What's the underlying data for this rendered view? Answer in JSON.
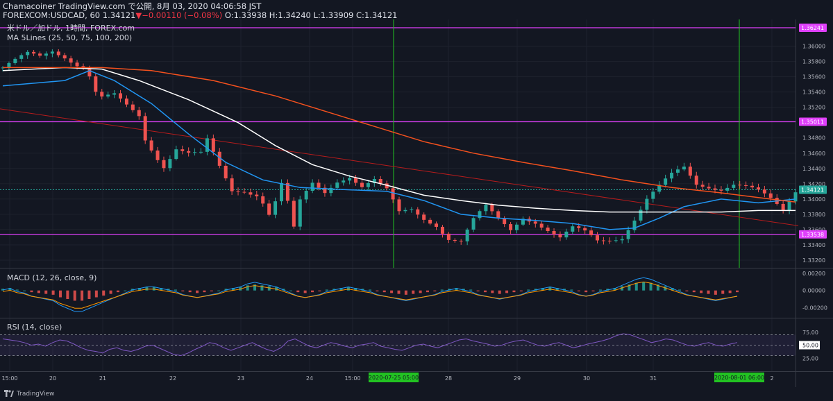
{
  "header": {
    "line1": "Chamacoiner TradingView.com で公開, 8月 03, 2020 04:06:58 JST",
    "symbol": "FOREXCOM:USDCAD, 60",
    "last": "1.34121",
    "change_arrow": "▼",
    "change": "−0.00110 (−0.08%)",
    "ohlc": "O:1.33938 H:1.34240 L:1.33909 C:1.34121"
  },
  "overlay": {
    "title": "米ドル／加ドル, 1時間, FOREX.com",
    "ma_label": "MA 5Lines (25, 50, 75, 100, 200)",
    "macd_label": "MACD (12, 26, close, 9)",
    "rsi_label": "RSI (14, close)"
  },
  "footer": {
    "brand": "TradingView"
  },
  "colors": {
    "bg": "#131722",
    "up": "#26a69a",
    "down": "#ef5350",
    "ma_blue": "#2196f3",
    "ma_white": "#ffffff",
    "ma_red": "#f4511e",
    "trend": "#b71c1c",
    "level": "#e040fb",
    "vline": "#22c322",
    "rsi": "#7e57c2"
  },
  "chart_data": [
    {
      "type": "candlestick",
      "title": "米ドル／加ドル, 1時間, FOREX.com",
      "ylim": [
        1.331,
        1.3635
      ],
      "y_ticks": [
        "1.36000",
        "1.35800",
        "1.35600",
        "1.35400",
        "1.35200",
        "1.34800",
        "1.34600",
        "1.34400",
        "1.34200",
        "1.34000",
        "1.33800",
        "1.33600",
        "1.33400",
        "1.33200"
      ],
      "x_ticks": [
        "15:00",
        "20",
        "21",
        "22",
        "23",
        "24",
        "15:00",
        "28",
        "29",
        "30",
        "31",
        "2"
      ],
      "price_levels": [
        {
          "value": 1.36241,
          "label": "1.36241"
        },
        {
          "value": 1.35011,
          "label": "1.35011"
        },
        {
          "value": 1.33538,
          "label": "1.33538"
        }
      ],
      "last_price": {
        "value": 1.34121,
        "label": "1.34121"
      },
      "vertical_markers": [
        {
          "label": "2020-07-25  05:00"
        },
        {
          "label": "2020-08-01  06:00"
        }
      ],
      "trendline": {
        "start": 1.3518,
        "end": 1.3365
      },
      "close_path": [
        [
          0,
          1.3572
        ],
        [
          2,
          1.358
        ],
        [
          4,
          1.3588
        ],
        [
          6,
          1.3585
        ],
        [
          8,
          1.3594
        ],
        [
          10,
          1.3588
        ],
        [
          12,
          1.3578
        ],
        [
          13,
          1.3574
        ],
        [
          14,
          1.3562
        ],
        [
          15,
          1.354
        ],
        [
          16,
          1.3532
        ],
        [
          18,
          1.3534
        ],
        [
          20,
          1.352
        ],
        [
          22,
          1.3508
        ],
        [
          23,
          1.3478
        ],
        [
          25,
          1.3455
        ],
        [
          26,
          1.3445
        ],
        [
          28,
          1.3468
        ],
        [
          30,
          1.346
        ],
        [
          32,
          1.3458
        ],
        [
          33,
          1.3475
        ],
        [
          35,
          1.344
        ],
        [
          37,
          1.341
        ],
        [
          39,
          1.3412
        ],
        [
          41,
          1.3408
        ],
        [
          42,
          1.3398
        ],
        [
          43,
          1.3382
        ],
        [
          44,
          1.3398
        ],
        [
          45,
          1.342
        ],
        [
          46,
          1.3395
        ],
        [
          47,
          1.336
        ],
        [
          48,
          1.3395
        ],
        [
          50,
          1.3418
        ],
        [
          52,
          1.3408
        ],
        [
          54,
          1.3425
        ],
        [
          56,
          1.3432
        ],
        [
          58,
          1.3418
        ],
        [
          60,
          1.3425
        ],
        [
          62,
          1.341
        ],
        [
          63,
          1.3395
        ],
        [
          64,
          1.338
        ],
        [
          66,
          1.3385
        ],
        [
          68,
          1.3375
        ],
        [
          70,
          1.3368
        ],
        [
          72,
          1.335
        ],
        [
          74,
          1.3345
        ],
        [
          76,
          1.3372
        ],
        [
          78,
          1.3388
        ],
        [
          80,
          1.3372
        ],
        [
          82,
          1.336
        ],
        [
          84,
          1.3378
        ],
        [
          86,
          1.3372
        ],
        [
          88,
          1.336
        ],
        [
          90,
          1.3348
        ],
        [
          92,
          1.336
        ],
        [
          94,
          1.3355
        ],
        [
          96,
          1.3345
        ],
        [
          98,
          1.3348
        ],
        [
          100,
          1.3352
        ],
        [
          102,
          1.3375
        ],
        [
          104,
          1.34
        ],
        [
          106,
          1.3415
        ],
        [
          108,
          1.343
        ],
        [
          110,
          1.344
        ],
        [
          112,
          1.342
        ],
        [
          114,
          1.3418
        ],
        [
          116,
          1.3415
        ],
        [
          118,
          1.342
        ],
        [
          120,
          1.3415
        ],
        [
          122,
          1.3408
        ],
        [
          124,
          1.3398
        ],
        [
          126,
          1.3385
        ],
        [
          128,
          1.3412
        ]
      ],
      "series": [
        {
          "name": "MA 25",
          "points": [
            [
              0,
              1.3548
            ],
            [
              10,
              1.3555
            ],
            [
              14,
              1.3568
            ],
            [
              18,
              1.3555
            ],
            [
              24,
              1.3525
            ],
            [
              30,
              1.3485
            ],
            [
              36,
              1.3448
            ],
            [
              42,
              1.3425
            ],
            [
              48,
              1.3415
            ],
            [
              56,
              1.3412
            ],
            [
              62,
              1.341
            ],
            [
              68,
              1.3398
            ],
            [
              74,
              1.338
            ],
            [
              80,
              1.3375
            ],
            [
              86,
              1.3372
            ],
            [
              92,
              1.3368
            ],
            [
              98,
              1.336
            ],
            [
              102,
              1.3362
            ],
            [
              106,
              1.3375
            ],
            [
              110,
              1.339
            ],
            [
              116,
              1.34
            ],
            [
              122,
              1.3395
            ],
            [
              128,
              1.34
            ]
          ]
        },
        {
          "name": "MA 100",
          "points": [
            [
              0,
              1.3568
            ],
            [
              10,
              1.3572
            ],
            [
              16,
              1.357
            ],
            [
              22,
              1.3555
            ],
            [
              30,
              1.353
            ],
            [
              38,
              1.35
            ],
            [
              44,
              1.347
            ],
            [
              50,
              1.3445
            ],
            [
              56,
              1.343
            ],
            [
              62,
              1.3418
            ],
            [
              68,
              1.3405
            ],
            [
              74,
              1.3398
            ],
            [
              80,
              1.3392
            ],
            [
              86,
              1.3388
            ],
            [
              92,
              1.3385
            ],
            [
              98,
              1.3383
            ],
            [
              104,
              1.3383
            ],
            [
              110,
              1.3383
            ],
            [
              116,
              1.3383
            ],
            [
              122,
              1.3385
            ],
            [
              128,
              1.3385
            ]
          ]
        },
        {
          "name": "MA 200",
          "points": [
            [
              0,
              1.3572
            ],
            [
              16,
              1.3572
            ],
            [
              24,
              1.3568
            ],
            [
              34,
              1.3555
            ],
            [
              44,
              1.3535
            ],
            [
              52,
              1.3515
            ],
            [
              60,
              1.3495
            ],
            [
              68,
              1.3475
            ],
            [
              76,
              1.346
            ],
            [
              84,
              1.3448
            ],
            [
              92,
              1.3437
            ],
            [
              100,
              1.3425
            ],
            [
              108,
              1.3415
            ],
            [
              116,
              1.3408
            ],
            [
              122,
              1.3402
            ],
            [
              128,
              1.3396
            ]
          ]
        }
      ]
    },
    {
      "type": "histogram",
      "title": "MACD (12, 26, close, 9)",
      "ylim": [
        -0.00032,
        0.00025
      ],
      "y_ticks": [
        "0.00200",
        "0.00000",
        "-0.00200"
      ],
      "values": [
        2e-05,
        3e-05,
        1e-05,
        0.0,
        -2e-05,
        -3e-05,
        -4e-05,
        -5e-05,
        -8e-05,
        -0.0001,
        -0.00012,
        -0.00012,
        -0.0001,
        -8e-05,
        -6e-05,
        -4e-05,
        -2e-05,
        0.0,
        2e-05,
        3e-05,
        4e-05,
        4e-05,
        3e-05,
        2e-05,
        1e-05,
        -1e-05,
        -2e-05,
        -3e-05,
        -2e-05,
        -1e-05,
        0.0,
        2e-05,
        3e-05,
        4e-05,
        6e-05,
        7e-05,
        6e-05,
        5e-05,
        4e-05,
        2e-05,
        0.0,
        -2e-05,
        -3e-05,
        -2e-05,
        -1e-05,
        1e-05,
        2e-05,
        3e-05,
        4e-05,
        3e-05,
        2e-05,
        1e-05,
        -1e-05,
        -2e-05,
        -3e-05,
        -4e-05,
        -5e-05,
        -4e-05,
        -3e-05,
        -2e-05,
        -1e-05,
        1e-05,
        2e-05,
        3e-05,
        2e-05,
        1e-05,
        -1e-05,
        -2e-05,
        -3e-05,
        -4e-05,
        -3e-05,
        -2e-05,
        -1e-05,
        1e-05,
        2e-05,
        3e-05,
        4e-05,
        3e-05,
        2e-05,
        1e-05,
        -1e-05,
        -2e-05,
        -1e-05,
        1e-05,
        2e-05,
        3e-05,
        5e-05,
        7e-05,
        9e-05,
        0.0001,
        9e-05,
        7e-05,
        5e-05,
        3e-05,
        1e-05,
        -1e-05,
        -2e-05,
        -3e-05,
        -4e-05,
        -5e-05,
        -4e-05,
        -3e-05,
        -2e-05
      ]
    },
    {
      "type": "line",
      "title": "RSI (14, close)",
      "ylim": [
        0,
        100
      ],
      "y_ticks": [
        "75.00",
        "50.00",
        "25.00"
      ],
      "reference_lines": [
        70,
        50,
        30
      ],
      "values": [
        62,
        60,
        58,
        55,
        50,
        52,
        48,
        55,
        60,
        58,
        52,
        45,
        40,
        38,
        35,
        42,
        45,
        40,
        38,
        42,
        48,
        50,
        44,
        38,
        32,
        30,
        35,
        42,
        48,
        55,
        52,
        45,
        40,
        45,
        50,
        55,
        48,
        42,
        38,
        45,
        58,
        62,
        55,
        48,
        45,
        50,
        55,
        52,
        48,
        45,
        50,
        52,
        55,
        48,
        45,
        42,
        40,
        45,
        50,
        52,
        48,
        45,
        50,
        55,
        60,
        62,
        58,
        55,
        52,
        48,
        50,
        55,
        58,
        60,
        55,
        50,
        48,
        52,
        55,
        50,
        45,
        48,
        52,
        55,
        58,
        62,
        68,
        72,
        70,
        65,
        60,
        55,
        58,
        62,
        60,
        55,
        50,
        48,
        52,
        55,
        50,
        48,
        52,
        55
      ]
    }
  ]
}
